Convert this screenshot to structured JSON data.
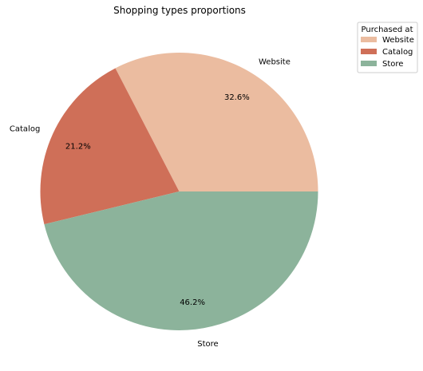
{
  "chart_data": {
    "type": "pie",
    "title": "Shopping types proportions",
    "categories": [
      "Website",
      "Catalog",
      "Store"
    ],
    "values": [
      32.6,
      21.2,
      46.2
    ],
    "percent_labels": [
      "32.6%",
      "21.2%",
      "46.2%"
    ],
    "colors": [
      "#ebbca0",
      "#cf6f58",
      "#8cb39b"
    ],
    "start_angle_deg": 0,
    "direction": "counterclockwise",
    "legend": {
      "title": "Purchased at",
      "placement": "upper-right-outside",
      "entries": [
        "Website",
        "Catalog",
        "Store"
      ]
    }
  }
}
